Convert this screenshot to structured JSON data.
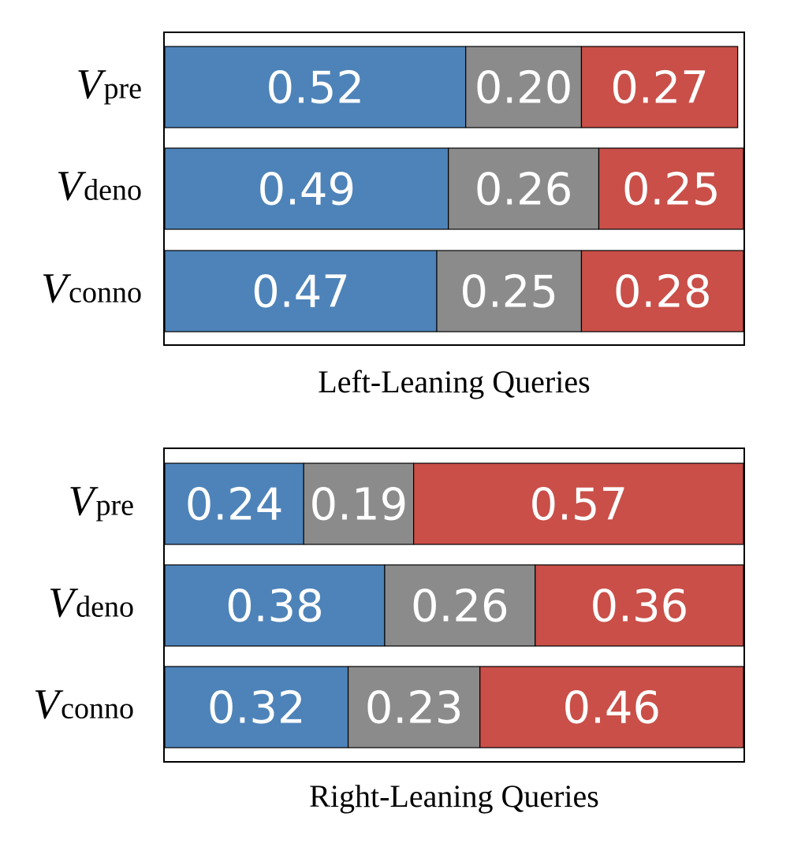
{
  "colors": {
    "blue": "#4d83b9",
    "gray": "#8b8b8b",
    "red": "#c94f48"
  },
  "chart_data": [
    {
      "type": "bar",
      "orientation": "horizontal",
      "stacked": true,
      "xlabel": "Left-Leaning Queries",
      "categories": [
        {
          "main": "V",
          "sub": "pre"
        },
        {
          "main": "V",
          "sub": "deno"
        },
        {
          "main": "V",
          "sub": "conno"
        }
      ],
      "series": [
        {
          "name": "blue",
          "color": "blue",
          "values": [
            0.52,
            0.49,
            0.47
          ]
        },
        {
          "name": "gray",
          "color": "gray",
          "values": [
            0.2,
            0.26,
            0.25
          ]
        },
        {
          "name": "red",
          "color": "red",
          "values": [
            0.27,
            0.25,
            0.28
          ]
        }
      ],
      "labels": [
        [
          "0.52",
          "0.20",
          "0.27"
        ],
        [
          "0.49",
          "0.26",
          "0.25"
        ],
        [
          "0.47",
          "0.25",
          "0.28"
        ]
      ],
      "xlim": [
        0,
        1
      ]
    },
    {
      "type": "bar",
      "orientation": "horizontal",
      "stacked": true,
      "xlabel": "Right-Leaning Queries",
      "categories": [
        {
          "main": "V",
          "sub": "pre"
        },
        {
          "main": "V",
          "sub": "deno"
        },
        {
          "main": "V",
          "sub": "conno"
        }
      ],
      "series": [
        {
          "name": "blue",
          "color": "blue",
          "values": [
            0.24,
            0.38,
            0.32
          ]
        },
        {
          "name": "gray",
          "color": "gray",
          "values": [
            0.19,
            0.26,
            0.23
          ]
        },
        {
          "name": "red",
          "color": "red",
          "values": [
            0.57,
            0.36,
            0.46
          ]
        }
      ],
      "labels": [
        [
          "0.24",
          "0.19",
          "0.57"
        ],
        [
          "0.38",
          "0.26",
          "0.36"
        ],
        [
          "0.32",
          "0.23",
          "0.46"
        ]
      ],
      "xlim": [
        0,
        1
      ]
    }
  ]
}
